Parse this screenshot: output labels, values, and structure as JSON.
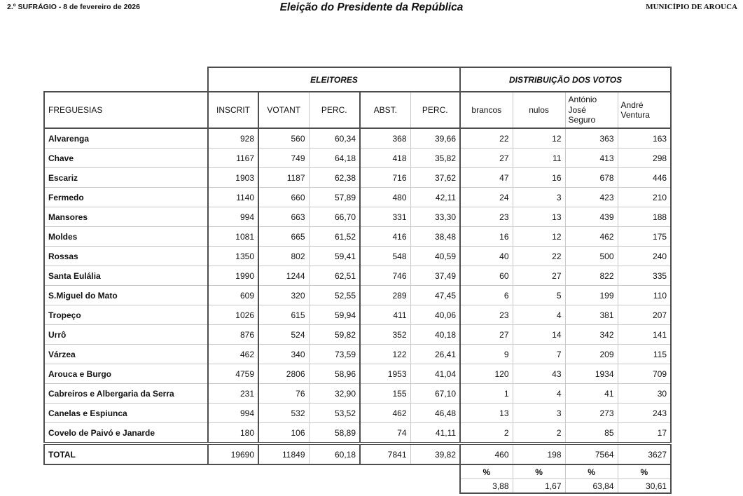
{
  "page": {
    "doc_header": {
      "left": "2.º SUFRÁGIO - 8 de fevereiro de 2026",
      "title": "Eleição do Presidente da República",
      "right": "MUNICÍPIO DE AROUCA"
    }
  },
  "table": {
    "group_headers": {
      "eleitores": "ELEITORES",
      "votos": "DISTRIBUIÇÃO DOS VOTOS"
    },
    "columns": [
      "FREGUESIAS",
      "INSCRIT",
      "VOTANT",
      "PERC.",
      "ABST.",
      "PERC.",
      "brancos",
      "nulos",
      "António José Seguro",
      "André Ventura"
    ],
    "rows": [
      [
        "Alvarenga",
        "928",
        "560",
        "60,34",
        "368",
        "39,66",
        "22",
        "12",
        "363",
        "163"
      ],
      [
        "Chave",
        "1167",
        "749",
        "64,18",
        "418",
        "35,82",
        "27",
        "11",
        "413",
        "298"
      ],
      [
        "Escariz",
        "1903",
        "1187",
        "62,38",
        "716",
        "37,62",
        "47",
        "16",
        "678",
        "446"
      ],
      [
        "Fermedo",
        "1140",
        "660",
        "57,89",
        "480",
        "42,11",
        "24",
        "3",
        "423",
        "210"
      ],
      [
        "Mansores",
        "994",
        "663",
        "66,70",
        "331",
        "33,30",
        "23",
        "13",
        "439",
        "188"
      ],
      [
        "Moldes",
        "1081",
        "665",
        "61,52",
        "416",
        "38,48",
        "16",
        "12",
        "462",
        "175"
      ],
      [
        "Rossas",
        "1350",
        "802",
        "59,41",
        "548",
        "40,59",
        "40",
        "22",
        "500",
        "240"
      ],
      [
        "Santa Eulália",
        "1990",
        "1244",
        "62,51",
        "746",
        "37,49",
        "60",
        "27",
        "822",
        "335"
      ],
      [
        "S.Miguel do Mato",
        "609",
        "320",
        "52,55",
        "289",
        "47,45",
        "6",
        "5",
        "199",
        "110"
      ],
      [
        "Tropeço",
        "1026",
        "615",
        "59,94",
        "411",
        "40,06",
        "23",
        "4",
        "381",
        "207"
      ],
      [
        "Urrô",
        "876",
        "524",
        "59,82",
        "352",
        "40,18",
        "27",
        "14",
        "342",
        "141"
      ],
      [
        "Várzea",
        "462",
        "340",
        "73,59",
        "122",
        "26,41",
        "9",
        "7",
        "209",
        "115"
      ],
      [
        "Arouca e Burgo",
        "4759",
        "2806",
        "58,96",
        "1953",
        "41,04",
        "120",
        "43",
        "1934",
        "709"
      ],
      [
        "Cabreiros e Albergaria da Serra",
        "231",
        "76",
        "32,90",
        "155",
        "67,10",
        "1",
        "4",
        "41",
        "30"
      ],
      [
        "Canelas e Espiunca",
        "994",
        "532",
        "53,52",
        "462",
        "46,48",
        "13",
        "3",
        "273",
        "243"
      ],
      [
        "Covelo de Paivó e Janarde",
        "180",
        "106",
        "58,89",
        "74",
        "41,11",
        "2",
        "2",
        "85",
        "17"
      ]
    ],
    "total": [
      "TOTAL",
      "19690",
      "11849",
      "60,18",
      "7841",
      "39,82",
      "460",
      "198",
      "7564",
      "3627"
    ],
    "percent_labels": [
      "%",
      "%",
      "%",
      "%"
    ],
    "percent_values": [
      "3,88",
      "1,67",
      "63,84",
      "30,61"
    ]
  },
  "colors": {
    "border_dark": "#4d4d4d",
    "border_light": "#c9c9c9",
    "text": "#111111"
  }
}
